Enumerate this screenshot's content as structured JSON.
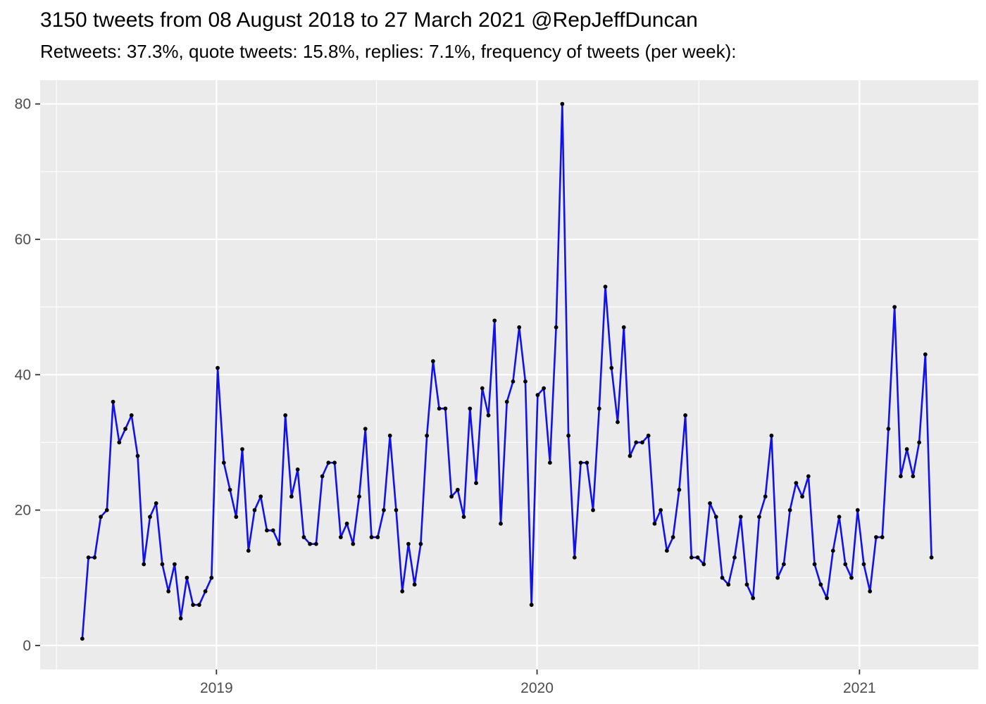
{
  "page": {
    "background": "#ffffff"
  },
  "header": {
    "title": "3150 tweets from 08 August 2018 to 27 March 2021 @RepJeffDuncan",
    "subtitle": "Retweets: 37.3%, quote tweets: 15.8%, replies: 7.1%, frequency of tweets (per week):"
  },
  "chart_data": {
    "type": "line",
    "title": "3150 tweets from 08 August 2018 to 27 March 2021 @RepJeffDuncan",
    "subtitle": "Retweets: 37.3%, quote tweets: 15.8%, replies: 7.1%, frequency of tweets (per week):",
    "series_name": "tweets per week",
    "x_unit": "weeks since 08 August 2018",
    "start_label": "08 August 2018",
    "end_label": "27 March 2021",
    "values": [
      1,
      13,
      13,
      19,
      20,
      36,
      30,
      32,
      34,
      28,
      12,
      19,
      21,
      12,
      8,
      12,
      4,
      10,
      6,
      6,
      8,
      10,
      41,
      27,
      23,
      19,
      29,
      14,
      20,
      22,
      17,
      17,
      15,
      34,
      22,
      26,
      16,
      15,
      15,
      25,
      27,
      27,
      16,
      18,
      15,
      22,
      32,
      16,
      16,
      20,
      31,
      20,
      8,
      15,
      9,
      15,
      31,
      42,
      35,
      35,
      22,
      23,
      19,
      35,
      24,
      38,
      34,
      48,
      18,
      36,
      39,
      47,
      39,
      6,
      37,
      38,
      27,
      47,
      80,
      31,
      13,
      27,
      27,
      20,
      35,
      53,
      41,
      33,
      47,
      28,
      30,
      30,
      31,
      18,
      20,
      14,
      16,
      23,
      34,
      13,
      13,
      12,
      21,
      19,
      10,
      9,
      13,
      19,
      9,
      7,
      19,
      22,
      31,
      10,
      12,
      20,
      24,
      22,
      25,
      12,
      9,
      7,
      14,
      19,
      12,
      10,
      20,
      12,
      8,
      16,
      16,
      32,
      50,
      25,
      29,
      25,
      30,
      43,
      13
    ],
    "x_axis": {
      "tick_labels": [
        "2019",
        "2020",
        "2021"
      ],
      "tick_weeks": [
        21.8,
        73.9,
        126.3
      ],
      "minor_weeks": [
        -4.19,
        47.8,
        100.2
      ],
      "range_weeks": [
        -6.85,
        145.6
      ],
      "label": ""
    },
    "y_axis": {
      "tick_labels": [
        "0",
        "20",
        "40",
        "60",
        "80"
      ],
      "tick_values": [
        0,
        20,
        40,
        60,
        80
      ],
      "minor_values": [
        10,
        30,
        50,
        70
      ],
      "range": [
        -3.55,
        83.5
      ],
      "label": ""
    },
    "grid": "on",
    "legend": "none",
    "style": {
      "line_color": "#1111EE",
      "point_color": "#000000",
      "panel_bg": "#EBEBEB",
      "grid_color": "#FFFFFF",
      "tick_text_color": "#4D4D4D",
      "tick_mark_color": "#333333"
    }
  }
}
